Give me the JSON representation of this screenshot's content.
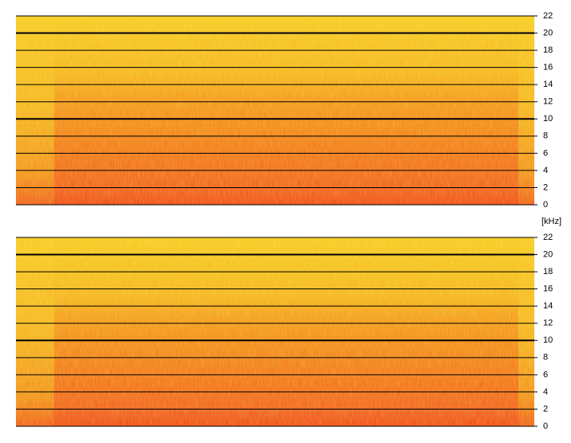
{
  "chart_data": [
    {
      "type": "spectrogram",
      "ylim": [
        0,
        22
      ],
      "yticks": [
        0,
        2,
        4,
        6,
        8,
        10,
        12,
        14,
        16,
        18,
        20,
        22
      ],
      "grid": true,
      "bold_ticks": [
        10,
        20
      ],
      "ylabel": "[kHz]"
    },
    {
      "type": "spectrogram",
      "ylim": [
        0,
        22
      ],
      "yticks": [
        0,
        2,
        4,
        6,
        8,
        10,
        12,
        14,
        16,
        18,
        20,
        22
      ],
      "grid": true,
      "bold_ticks": [
        10,
        20
      ]
    }
  ]
}
